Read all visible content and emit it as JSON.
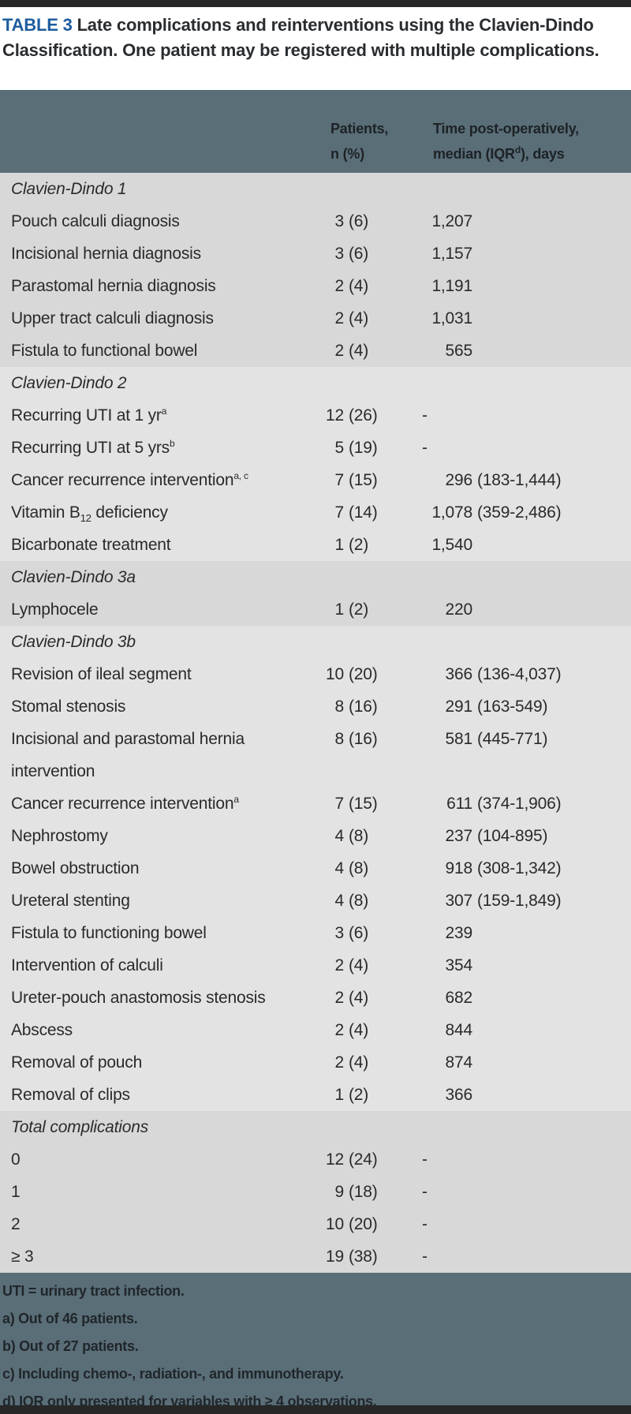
{
  "table": {
    "title_label": "TABLE 3",
    "title_rest": " Late complications and reinterventions using the Clavien-Dindo Classification. One patient may be registered with multiple complications.",
    "header": {
      "patients_line1": "Patients,",
      "patients_line2": "n (%)",
      "time_line1": "Time post-operatively,",
      "time_line2_pre": "median (IQR",
      "time_line2_sup": "d",
      "time_line2_post": "), days"
    },
    "sections": [
      {
        "name": "Clavien-Dindo 1",
        "shade": "a",
        "rows": [
          {
            "label": "Pouch calculi diagnosis",
            "n": "3",
            "pct": "(6)",
            "med": "1,207"
          },
          {
            "label": "Incisional hernia diagnosis",
            "n": "3",
            "pct": "(6)",
            "med": "1,157"
          },
          {
            "label": "Parastomal hernia diagnosis",
            "n": "2",
            "pct": "(4)",
            "med": "1,191"
          },
          {
            "label": "Upper tract calculi diagnosis",
            "n": "2",
            "pct": "(4)",
            "med": "1,031"
          },
          {
            "label": "Fistula to functional bowel",
            "n": "2",
            "pct": "(4)",
            "med": "565"
          }
        ]
      },
      {
        "name": "Clavien-Dindo 2",
        "shade": "b",
        "rows": [
          {
            "label": "Recurring UTI at 1 yr",
            "sup": "a",
            "n": "12",
            "pct": "(26)",
            "med": "-",
            "dash": true
          },
          {
            "label": "Recurring UTI at 5 yrs",
            "sup": "b",
            "n": "5",
            "pct": "(19)",
            "med": "-",
            "dash": true
          },
          {
            "label": "Cancer recurrence intervention",
            "sup": "a, c",
            "n": "7",
            "pct": "(15)",
            "med": "296",
            "iqr": "(183-1,444)"
          },
          {
            "label": "Vitamin B",
            "sub": "12",
            "post": " deficiency",
            "n": "7",
            "pct": "(14)",
            "med": "1,078",
            "iqr": "(359-2,486)"
          },
          {
            "label": "Bicarbonate treatment",
            "n": "1",
            "pct": "(2)",
            "med": "1,540"
          }
        ]
      },
      {
        "name": "Clavien-Dindo 3a",
        "shade": "a",
        "rows": [
          {
            "label": "Lymphocele",
            "n": "1",
            "pct": "(2)",
            "med": "220"
          }
        ]
      },
      {
        "name": "Clavien-Dindo 3b",
        "shade": "b",
        "rows": [
          {
            "label": "Revision of ileal segment",
            "n": "10",
            "pct": "(20)",
            "med": "366",
            "iqr": "(136-4,037)"
          },
          {
            "label": "Stomal stenosis",
            "n": "8",
            "pct": "(16)",
            "med": "291",
            "iqr": "(163-549)"
          },
          {
            "label": "Incisional and parastomal hernia intervention",
            "n": "8",
            "pct": "(16)",
            "med": "581",
            "iqr": "(445-771)"
          },
          {
            "label": "Cancer recurrence intervention",
            "sup": "a",
            "n": "7",
            "pct": "(15)",
            "med": "611",
            "iqr": "(374-1,906)"
          },
          {
            "label": "Nephrostomy",
            "n": "4",
            "pct": "(8)",
            "med": "237",
            "iqr": "(104-895)"
          },
          {
            "label": "Bowel obstruction",
            "n": "4",
            "pct": "(8)",
            "med": "918",
            "iqr": "(308-1,342)"
          },
          {
            "label": "Ureteral stenting",
            "n": "4",
            "pct": "(8)",
            "med": "307",
            "iqr": "(159-1,849)"
          },
          {
            "label": "Fistula to functioning bowel",
            "n": "3",
            "pct": "(6)",
            "med": "239"
          },
          {
            "label": "Intervention of calculi",
            "n": "2",
            "pct": "(4)",
            "med": "354"
          },
          {
            "label": "Ureter-pouch anastomosis stenosis",
            "n": "2",
            "pct": "(4)",
            "med": "682"
          },
          {
            "label": "Abscess",
            "n": "2",
            "pct": "(4)",
            "med": "844"
          },
          {
            "label": "Removal of pouch",
            "n": "2",
            "pct": "(4)",
            "med": "874"
          },
          {
            "label": "Removal of clips",
            "n": "1",
            "pct": "(2)",
            "med": "366"
          }
        ]
      },
      {
        "name": "Total complications",
        "shade": "a",
        "rows": [
          {
            "label": "0",
            "n": "12",
            "pct": "(24)",
            "med": "-",
            "dash": true
          },
          {
            "label": "1",
            "n": "9",
            "pct": "(18)",
            "med": "-",
            "dash": true
          },
          {
            "label": "2",
            "n": "10",
            "pct": "(20)",
            "med": "-",
            "dash": true
          },
          {
            "label": "≥ 3",
            "n": "19",
            "pct": "(38)",
            "med": "-",
            "dash": true
          }
        ]
      }
    ],
    "footnotes": [
      "UTI = urinary tract infection.",
      "a) Out of 46 patients.",
      "b) Out of 27 patients.",
      "c) Including chemo-, radiation-, and immunotherapy.",
      "d) IQR only presented for variables with ≥ 4 observations."
    ],
    "colors": {
      "accent_blue": "#1e5c9e",
      "slate_band": "#5a6e78",
      "section_shade_dark": "#d8d8d9",
      "section_shade_light": "#e3e3e4",
      "bar": "#272727"
    }
  }
}
